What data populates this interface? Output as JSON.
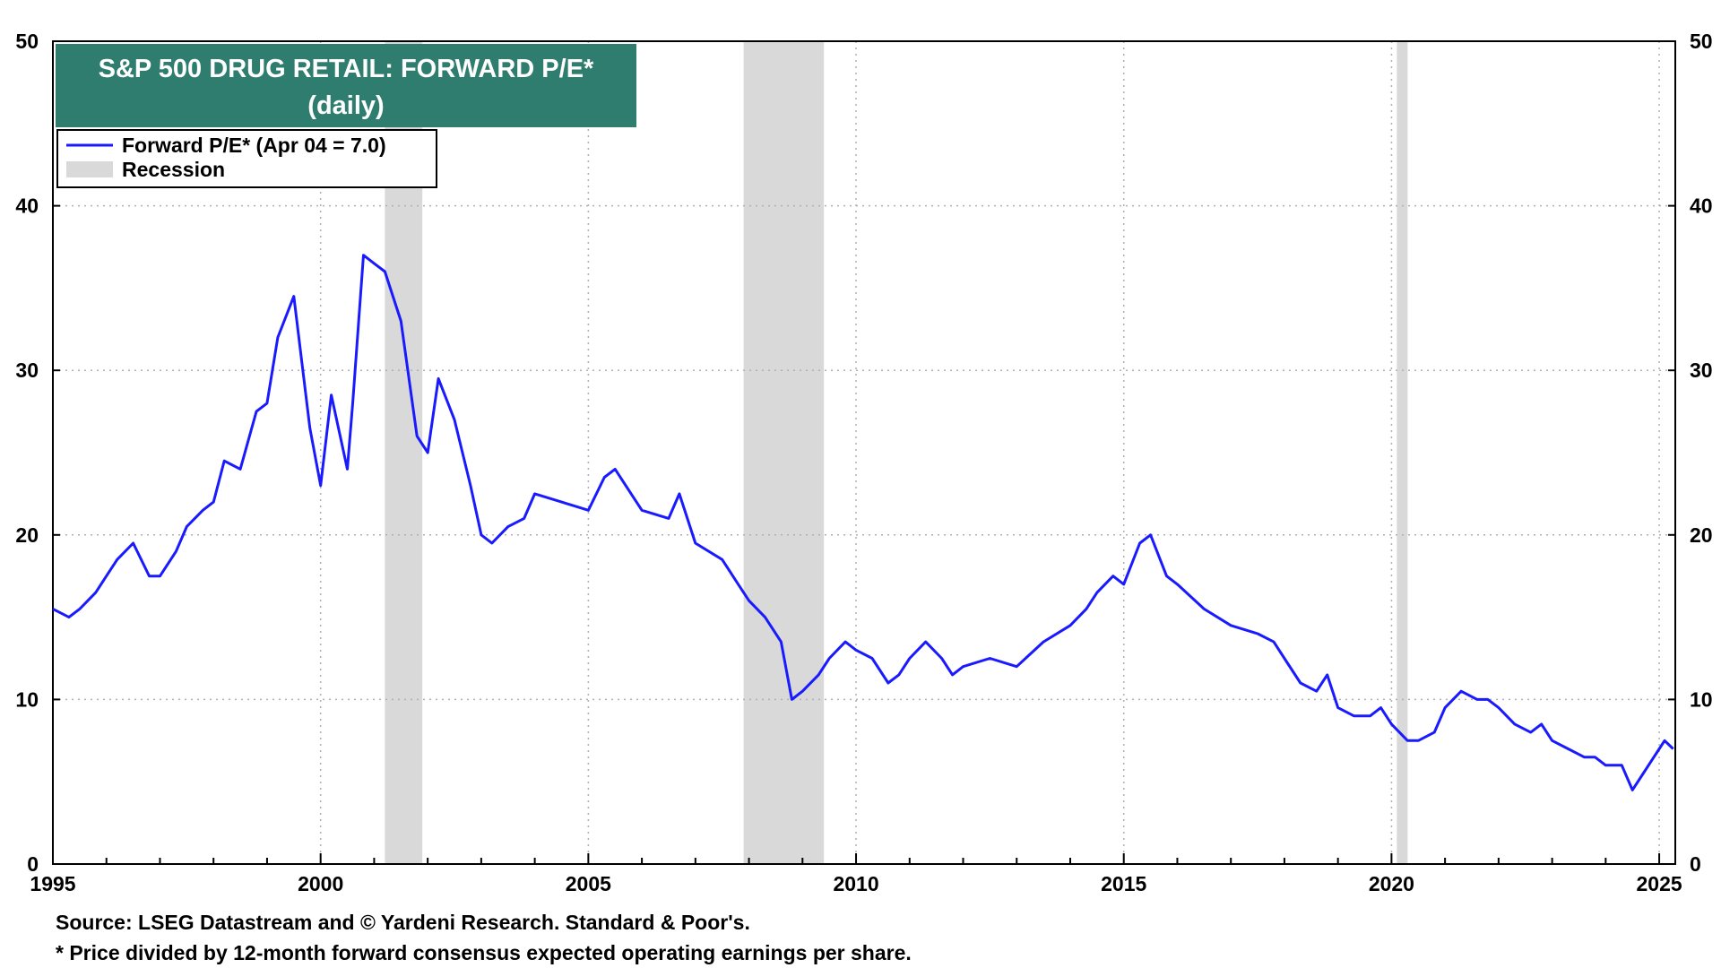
{
  "chart_data": {
    "type": "line",
    "title": "S&P 500 DRUG RETAIL: FORWARD P/E*",
    "subtitle": "(daily)",
    "legend": {
      "placement": "top-left",
      "entries": [
        "Forward P/E* (Apr 04 = 7.0)",
        "Recession"
      ]
    },
    "xlim": [
      1995,
      2025.3
    ],
    "ylim": [
      0,
      50
    ],
    "x_ticks": [
      1995,
      2000,
      2005,
      2010,
      2015,
      2020,
      2025
    ],
    "y_ticks": [
      0,
      10,
      20,
      30,
      40,
      50
    ],
    "grid": true,
    "colors": {
      "series": "#1a1aff",
      "recession": "#d9d9d9",
      "title_bg": "#2e7d6e"
    },
    "recessions": [
      [
        2001.2,
        2001.9
      ],
      [
        2007.9,
        2009.4
      ],
      [
        2020.1,
        2020.3
      ]
    ],
    "series": [
      {
        "name": "Forward P/E*",
        "x": [
          1995.0,
          1995.3,
          1995.5,
          1995.8,
          1996.0,
          1996.2,
          1996.5,
          1996.8,
          1997.0,
          1997.3,
          1997.5,
          1997.8,
          1998.0,
          1998.2,
          1998.5,
          1998.8,
          1999.0,
          1999.2,
          1999.5,
          1999.8,
          2000.0,
          2000.2,
          2000.5,
          2000.6,
          2000.8,
          2001.0,
          2001.2,
          2001.5,
          2001.8,
          2002.0,
          2002.2,
          2002.5,
          2002.8,
          2003.0,
          2003.2,
          2003.5,
          2003.8,
          2004.0,
          2004.5,
          2005.0,
          2005.3,
          2005.5,
          2005.8,
          2006.0,
          2006.5,
          2006.7,
          2007.0,
          2007.5,
          2007.8,
          2008.0,
          2008.3,
          2008.6,
          2008.8,
          2009.0,
          2009.3,
          2009.5,
          2009.8,
          2010.0,
          2010.3,
          2010.6,
          2010.8,
          2011.0,
          2011.3,
          2011.6,
          2011.8,
          2012.0,
          2012.5,
          2013.0,
          2013.5,
          2014.0,
          2014.3,
          2014.5,
          2014.8,
          2015.0,
          2015.3,
          2015.5,
          2015.8,
          2016.0,
          2016.5,
          2017.0,
          2017.5,
          2017.8,
          2018.0,
          2018.3,
          2018.6,
          2018.8,
          2019.0,
          2019.3,
          2019.6,
          2019.8,
          2020.0,
          2020.3,
          2020.5,
          2020.8,
          2021.0,
          2021.3,
          2021.6,
          2021.8,
          2022.0,
          2022.3,
          2022.6,
          2022.8,
          2023.0,
          2023.3,
          2023.6,
          2023.8,
          2024.0,
          2024.3,
          2024.5,
          2024.7,
          2024.9,
          2025.0,
          2025.1,
          2025.26
        ],
        "y": [
          15.5,
          15.0,
          15.5,
          16.5,
          17.5,
          18.5,
          19.5,
          17.5,
          17.5,
          19.0,
          20.5,
          21.5,
          22.0,
          24.5,
          24.0,
          27.5,
          28.0,
          32.0,
          34.5,
          26.5,
          23.0,
          28.5,
          24.0,
          28.0,
          37.0,
          36.5,
          36.0,
          33.0,
          26.0,
          25.0,
          29.5,
          27.0,
          23.0,
          20.0,
          19.5,
          20.5,
          21.0,
          22.5,
          22.0,
          21.5,
          23.5,
          24.0,
          22.5,
          21.5,
          21.0,
          22.5,
          19.5,
          18.5,
          17.0,
          16.0,
          15.0,
          13.5,
          10.0,
          10.5,
          11.5,
          12.5,
          13.5,
          13.0,
          12.5,
          11.0,
          11.5,
          12.5,
          13.5,
          12.5,
          11.5,
          12.0,
          12.5,
          12.0,
          13.5,
          14.5,
          15.5,
          16.5,
          17.5,
          17.0,
          19.5,
          20.0,
          17.5,
          17.0,
          15.5,
          14.5,
          14.0,
          13.5,
          12.5,
          11.0,
          10.5,
          11.5,
          9.5,
          9.0,
          9.0,
          9.5,
          8.5,
          7.5,
          7.5,
          8.0,
          9.5,
          10.5,
          10.0,
          10.0,
          9.5,
          8.5,
          8.0,
          8.5,
          7.5,
          7.0,
          6.5,
          6.5,
          6.0,
          6.0,
          4.5,
          5.5,
          6.5,
          7.0,
          7.5,
          7.0
        ]
      }
    ]
  },
  "footer": {
    "source": "Source: LSEG Datastream and © Yardeni Research. Standard & Poor's.",
    "note": "* Price divided by 12-month forward consensus expected operating earnings per share."
  }
}
